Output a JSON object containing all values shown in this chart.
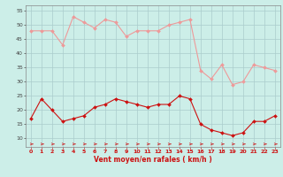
{
  "x": [
    0,
    1,
    2,
    3,
    4,
    5,
    6,
    7,
    8,
    9,
    10,
    11,
    12,
    13,
    14,
    15,
    16,
    17,
    18,
    19,
    20,
    21,
    22,
    23
  ],
  "wind_avg": [
    17,
    24,
    20,
    16,
    17,
    18,
    21,
    22,
    24,
    23,
    22,
    21,
    22,
    22,
    25,
    24,
    15,
    13,
    12,
    11,
    12,
    16,
    16,
    18
  ],
  "wind_gust": [
    48,
    48,
    48,
    43,
    53,
    51,
    49,
    52,
    51,
    46,
    48,
    48,
    48,
    50,
    51,
    52,
    34,
    31,
    36,
    29,
    30,
    36,
    35,
    34
  ],
  "xlabel": "Vent moyen/en rafales ( km/h )",
  "yticks": [
    10,
    15,
    20,
    25,
    30,
    35,
    40,
    45,
    50,
    55
  ],
  "xticks": [
    0,
    1,
    2,
    3,
    4,
    5,
    6,
    7,
    8,
    9,
    10,
    11,
    12,
    13,
    14,
    15,
    16,
    17,
    18,
    19,
    20,
    21,
    22,
    23
  ],
  "bg_color": "#cceee8",
  "grid_color": "#aacccc",
  "line_avg_color": "#cc1111",
  "line_gust_color": "#ee9999",
  "marker_avg_color": "#cc1111",
  "marker_gust_color": "#ee9999",
  "arrow_color": "#cc3333",
  "ylim": [
    7,
    57
  ],
  "xlim": [
    -0.5,
    23.5
  ],
  "tick_label_color_x": "#cc1111",
  "tick_label_color_y": "#444444",
  "xlabel_color": "#cc1111"
}
